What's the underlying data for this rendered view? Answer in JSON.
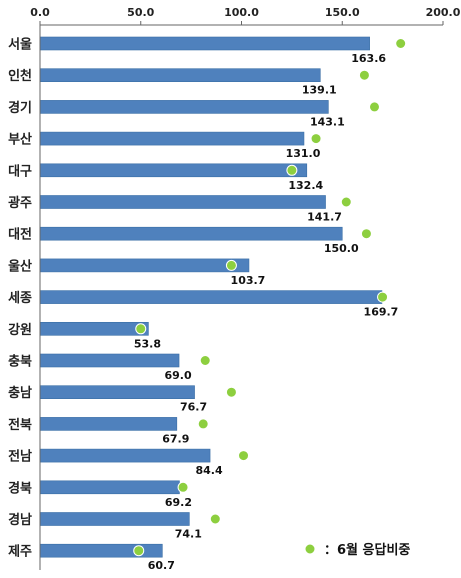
{
  "chart_data": {
    "type": "bar",
    "orientation": "horizontal",
    "categories": [
      "서울",
      "인천",
      "경기",
      "부산",
      "대구",
      "광주",
      "대전",
      "울산",
      "세종",
      "강원",
      "충북",
      "충남",
      "전북",
      "전남",
      "경북",
      "경남",
      "제주"
    ],
    "series": [
      {
        "values": [
          163.6,
          139.1,
          143.1,
          131.0,
          132.4,
          141.7,
          150.0,
          103.7,
          169.7,
          53.8,
          69.0,
          76.7,
          67.9,
          84.4,
          69.2,
          74.1,
          60.7
        ],
        "value_labels": [
          "163.6",
          "139.1",
          "143.1",
          "131.0",
          "132.4",
          "141.7",
          "150.0",
          "103.7",
          "169.7",
          "53.8",
          "69.0",
          "76.7",
          "67.9",
          "84.4",
          "69.2",
          "74.1",
          "60.7"
        ],
        "color": "#4f81bd"
      },
      {
        "name": "6월 응답비중",
        "values": [
          179,
          161,
          166,
          137,
          125,
          152,
          162,
          95,
          170,
          50,
          82,
          95,
          81,
          101,
          71,
          87,
          49
        ],
        "color": "#8dcf3f"
      }
    ],
    "xlim": [
      0,
      200
    ],
    "xticks": [
      "0.0",
      "50.0",
      "100.0",
      "150.0",
      "200.0"
    ],
    "axis_position": "top",
    "grid": false,
    "legend": {
      "marker_label": "：6월 응답비중",
      "position": "bottom-right"
    }
  }
}
